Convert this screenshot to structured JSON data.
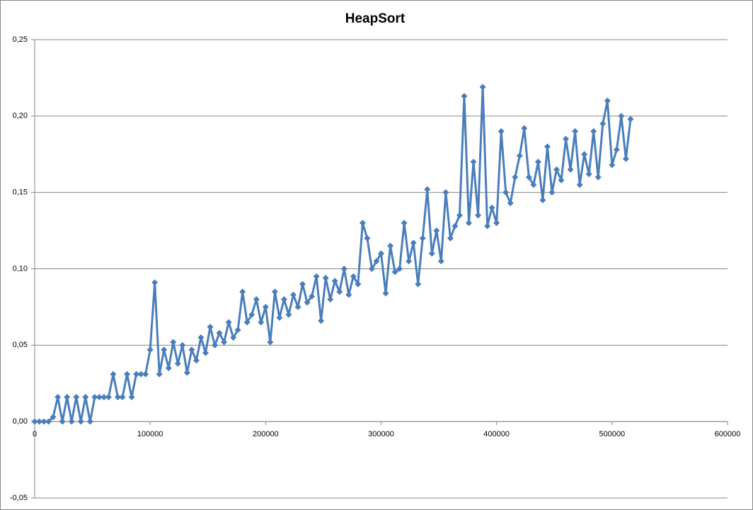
{
  "chart_data": {
    "type": "line",
    "title": "HeapSort",
    "color": "#4a7ebb",
    "marker": "diamond",
    "grid": true,
    "x": [
      0,
      4000,
      8000,
      12000,
      16000,
      20000,
      24000,
      28000,
      32000,
      36000,
      40000,
      44000,
      48000,
      52000,
      56000,
      60000,
      64000,
      68000,
      72000,
      76000,
      80000,
      84000,
      88000,
      92000,
      96000,
      100000,
      104000,
      108000,
      112000,
      116000,
      120000,
      124000,
      128000,
      132000,
      136000,
      140000,
      144000,
      148000,
      152000,
      156000,
      160000,
      164000,
      168000,
      172000,
      176000,
      180000,
      184000,
      188000,
      192000,
      196000,
      200000,
      204000,
      208000,
      212000,
      216000,
      220000,
      224000,
      228000,
      232000,
      236000,
      240000,
      244000,
      248000,
      252000,
      256000,
      260000,
      264000,
      268000,
      272000,
      276000,
      280000,
      284000,
      288000,
      292000,
      296000,
      300000,
      304000,
      308000,
      312000,
      316000,
      320000,
      324000,
      328000,
      332000,
      336000,
      340000,
      344000,
      348000,
      352000,
      356000,
      360000,
      364000,
      368000,
      372000,
      376000,
      380000,
      384000,
      388000,
      392000,
      396000,
      400000,
      404000,
      408000,
      412000,
      416000,
      420000,
      424000,
      428000,
      432000,
      436000,
      440000,
      444000,
      448000,
      452000,
      456000,
      460000,
      464000,
      468000,
      472000,
      476000,
      480000,
      484000,
      488000,
      492000,
      496000,
      500000,
      504000,
      508000,
      512000,
      516000
    ],
    "values": [
      0,
      0,
      0,
      0,
      0.003,
      0.016,
      0,
      0.016,
      0,
      0.016,
      0,
      0.016,
      0,
      0.016,
      0.016,
      0.016,
      0.016,
      0.031,
      0.016,
      0.016,
      0.031,
      0.016,
      0.031,
      0.031,
      0.031,
      0.047,
      0.091,
      0.031,
      0.047,
      0.035,
      0.052,
      0.038,
      0.05,
      0.032,
      0.047,
      0.04,
      0.055,
      0.045,
      0.062,
      0.05,
      0.058,
      0.052,
      0.065,
      0.055,
      0.06,
      0.085,
      0.065,
      0.07,
      0.08,
      0.065,
      0.075,
      0.052,
      0.085,
      0.068,
      0.08,
      0.07,
      0.083,
      0.075,
      0.09,
      0.078,
      0.082,
      0.095,
      0.066,
      0.094,
      0.08,
      0.092,
      0.085,
      0.1,
      0.083,
      0.095,
      0.09,
      0.13,
      0.12,
      0.1,
      0.105,
      0.11,
      0.084,
      0.115,
      0.098,
      0.1,
      0.13,
      0.105,
      0.117,
      0.09,
      0.12,
      0.152,
      0.11,
      0.125,
      0.105,
      0.15,
      0.12,
      0.128,
      0.135,
      0.213,
      0.13,
      0.17,
      0.135,
      0.219,
      0.128,
      0.14,
      0.13,
      0.19,
      0.15,
      0.143,
      0.16,
      0.174,
      0.192,
      0.16,
      0.155,
      0.17,
      0.145,
      0.18,
      0.15,
      0.165,
      0.158,
      0.185,
      0.165,
      0.19,
      0.155,
      0.175,
      0.162,
      0.19,
      0.16,
      0.195,
      0.21,
      0.168,
      0.178,
      0.2,
      0.172,
      0.198
    ],
    "xlim": [
      0,
      600000
    ],
    "xticks": [
      0,
      100000,
      200000,
      300000,
      400000,
      500000,
      600000
    ],
    "ylim": [
      -0.05,
      0.25
    ],
    "yticks": [
      {
        "value": -0.05,
        "label": "-0,05"
      },
      {
        "value": 0,
        "label": "0,00"
      },
      {
        "value": 0.05,
        "label": "0,05"
      },
      {
        "value": 0.1,
        "label": "0,10"
      },
      {
        "value": 0.15,
        "label": "0,15"
      },
      {
        "value": 0.2,
        "label": "0,20"
      },
      {
        "value": 0.25,
        "label": "0,25"
      }
    ]
  }
}
